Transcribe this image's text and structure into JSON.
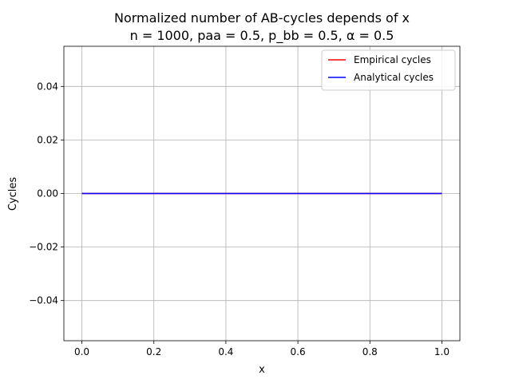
{
  "chart_data": {
    "type": "line",
    "title": "Normalized number of AB-cycles depends of x",
    "subtitle": "n = 1000, paa = 0.5, p_bb = 0.5, α = 0.5",
    "xlabel": "x",
    "ylabel": "Cycles",
    "xlim": [
      -0.05,
      1.05
    ],
    "ylim": [
      -0.055,
      0.055
    ],
    "xticks": [
      0.0,
      0.2,
      0.4,
      0.6,
      0.8,
      1.0
    ],
    "xtick_labels": [
      "0.0",
      "0.2",
      "0.4",
      "0.6",
      "0.8",
      "1.0"
    ],
    "yticks": [
      -0.04,
      -0.02,
      0.0,
      0.02,
      0.04
    ],
    "ytick_labels": [
      "−0.04",
      "−0.02",
      "0.00",
      "0.02",
      "0.04"
    ],
    "grid": true,
    "legend_position": "top-right",
    "series": [
      {
        "name": "Empirical cycles",
        "color": "#ff0000",
        "x": [
          0.0,
          1.0
        ],
        "y": [
          0.0,
          0.0
        ]
      },
      {
        "name": "Analytical cycles",
        "color": "#0000ff",
        "x": [
          0.0,
          1.0
        ],
        "y": [
          0.0,
          0.0
        ]
      }
    ]
  }
}
